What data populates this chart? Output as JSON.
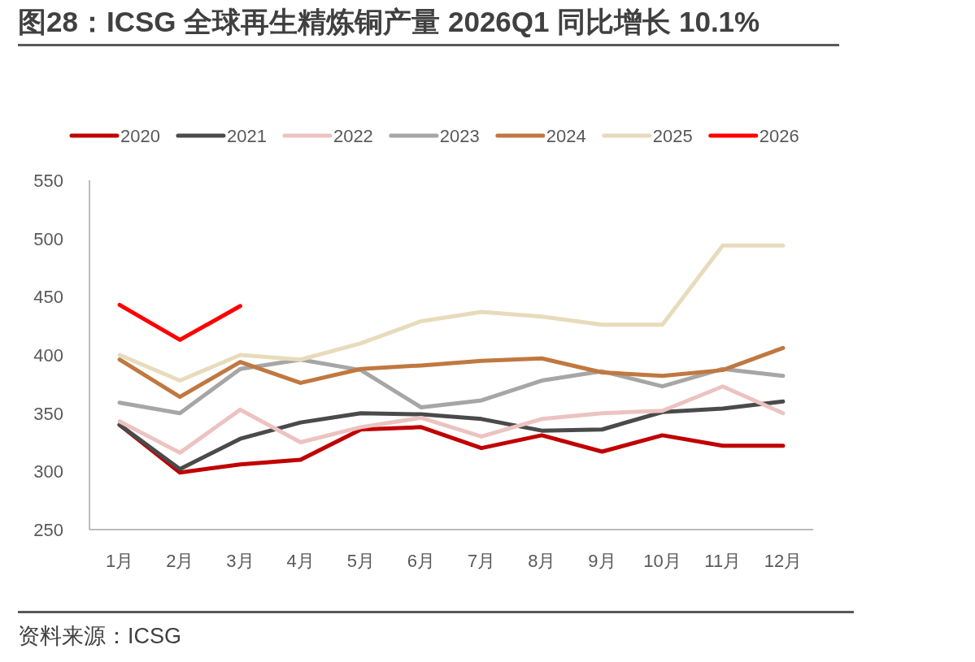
{
  "chart_data": {
    "type": "line",
    "title": "图28：ICSG  全球再生精炼铜产量  2026Q1  同比增长 10.1%",
    "categories": [
      "1月",
      "2月",
      "3月",
      "4月",
      "5月",
      "6月",
      "7月",
      "8月",
      "9月",
      "10月",
      "11月",
      "12月"
    ],
    "series": [
      {
        "name": "2020",
        "color": "#c00000",
        "values": [
          340,
          299,
          306,
          310,
          336,
          338,
          320,
          331,
          317,
          331,
          322,
          322
        ]
      },
      {
        "name": "2021",
        "color": "#4a4a4a",
        "values": [
          340,
          302,
          328,
          342,
          350,
          349,
          345,
          335,
          336,
          351,
          354,
          360
        ]
      },
      {
        "name": "2022",
        "color": "#ecc3c1",
        "values": [
          343,
          316,
          353,
          325,
          338,
          346,
          330,
          345,
          350,
          352,
          373,
          350
        ]
      },
      {
        "name": "2023",
        "color": "#a6a6a6",
        "values": [
          359,
          350,
          388,
          396,
          387,
          355,
          361,
          378,
          386,
          373,
          388,
          382
        ]
      },
      {
        "name": "2024",
        "color": "#c07840",
        "values": [
          396,
          364,
          394,
          376,
          388,
          391,
          395,
          397,
          385,
          382,
          387,
          406
        ]
      },
      {
        "name": "2025",
        "color": "#e8dbbc",
        "values": [
          400,
          378,
          400,
          396,
          410,
          429,
          437,
          433,
          426,
          426,
          494,
          494
        ]
      },
      {
        "name": "2026",
        "color": "#ff0000",
        "values": [
          443,
          413,
          442,
          null,
          null,
          null,
          null,
          null,
          null,
          null,
          null,
          null
        ]
      }
    ],
    "ylim": [
      250,
      550
    ],
    "yticks": [
      250,
      300,
      350,
      400,
      450,
      500,
      550
    ],
    "grid": false,
    "legend": "top",
    "annotations": [
      "资料来源：ICSG"
    ]
  }
}
